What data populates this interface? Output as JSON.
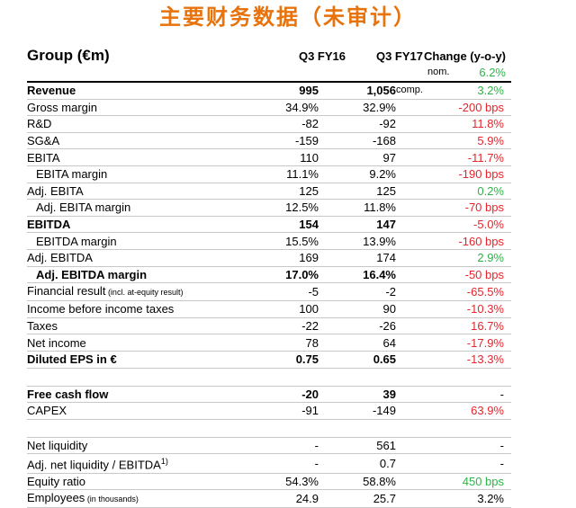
{
  "title": "主要财务数据（未审计）",
  "header": {
    "group": "Group (€m)",
    "col1": "Q3 FY16",
    "col2": "Q3 FY17",
    "col3": "Change (y-o-y)",
    "nom_label": "nom.",
    "nom_value": "6.2%",
    "comp_label": "comp.",
    "comp_value": "3.2%"
  },
  "colors": {
    "title": "#e8720c",
    "positive": "#2fb34a",
    "negative": "#e3262d"
  },
  "rows": [
    {
      "label": "Revenue",
      "v1": "995",
      "v2": "1,056",
      "v3": "3.2%",
      "style": "bold",
      "tone": "pos"
    },
    {
      "label": "Gross margin",
      "v1": "34.9%",
      "v2": "32.9%",
      "v3": "-200 bps",
      "tone": "neg"
    },
    {
      "label": "R&D",
      "v1": "-82",
      "v2": "-92",
      "v3": "11.8%",
      "tone": "neg"
    },
    {
      "label": "SG&A",
      "v1": "-159",
      "v2": "-168",
      "v3": "5.9%",
      "tone": "neg"
    },
    {
      "label": "EBITA",
      "v1": "110",
      "v2": "97",
      "v3": "-11.7%",
      "tone": "neg"
    },
    {
      "label": "EBITA margin",
      "v1": "11.1%",
      "v2": "9.2%",
      "v3": "-190 bps",
      "style": "indent",
      "tone": "neg"
    },
    {
      "label": "Adj. EBITA",
      "v1": "125",
      "v2": "125",
      "v3": "0.2%",
      "tone": "pos"
    },
    {
      "label": "Adj. EBITA margin",
      "v1": "12.5%",
      "v2": "11.8%",
      "v3": "-70 bps",
      "style": "indent",
      "tone": "neg"
    },
    {
      "label": "EBITDA",
      "v1": "154",
      "v2": "147",
      "v3": "-5.0%",
      "style": "bold",
      "tone": "neg"
    },
    {
      "label": "EBITDA margin",
      "v1": "15.5%",
      "v2": "13.9%",
      "v3": "-160 bps",
      "style": "indent",
      "tone": "neg"
    },
    {
      "label": "Adj. EBITDA",
      "v1": "169",
      "v2": "174",
      "v3": "2.9%",
      "tone": "pos"
    },
    {
      "label": "Adj. EBITDA margin",
      "v1": "17.0%",
      "v2": "16.4%",
      "v3": "-50 bps",
      "style": "bold indent",
      "tone": "neg"
    },
    {
      "label": "Financial result",
      "note": "(incl. at-equity result)",
      "v1": "-5",
      "v2": "-2",
      "v3": "-65.5%",
      "tone": "neg"
    },
    {
      "label": "Income before income taxes",
      "v1": "100",
      "v2": "90",
      "v3": "-10.3%",
      "tone": "neg"
    },
    {
      "label": "Taxes",
      "v1": "-22",
      "v2": "-26",
      "v3": "16.7%",
      "tone": "neg"
    },
    {
      "label": "Net income",
      "v1": "78",
      "v2": "64",
      "v3": "-17.9%",
      "tone": "neg"
    },
    {
      "label": "Diluted EPS in €",
      "v1": "0.75",
      "v2": "0.65",
      "v3": "-13.3%",
      "style": "bold",
      "tone": "neg"
    },
    {
      "spacer": true
    },
    {
      "label": "Free cash flow",
      "v1": "-20",
      "v2": "39",
      "v3": "-",
      "style": "bold",
      "tone": "neu"
    },
    {
      "label": "CAPEX",
      "v1": "-91",
      "v2": "-149",
      "v3": "63.9%",
      "tone": "neg"
    },
    {
      "spacer": true
    },
    {
      "label": "Net liquidity",
      "v1": "-",
      "v2": "561",
      "v3": "-",
      "tone": "neu"
    },
    {
      "label": "Adj. net liquidity / EBITDA",
      "sup": "1)",
      "v1": "-",
      "v2": "0.7",
      "v3": "-",
      "tone": "neu"
    },
    {
      "label": "Equity ratio",
      "v1": "54.3%",
      "v2": "58.8%",
      "v3": "450 bps",
      "tone": "pos"
    },
    {
      "label": "Employees",
      "note": "(in thousands)",
      "v1": "24.9",
      "v2": "25.7",
      "v3": "3.2%",
      "tone": "neu"
    }
  ]
}
